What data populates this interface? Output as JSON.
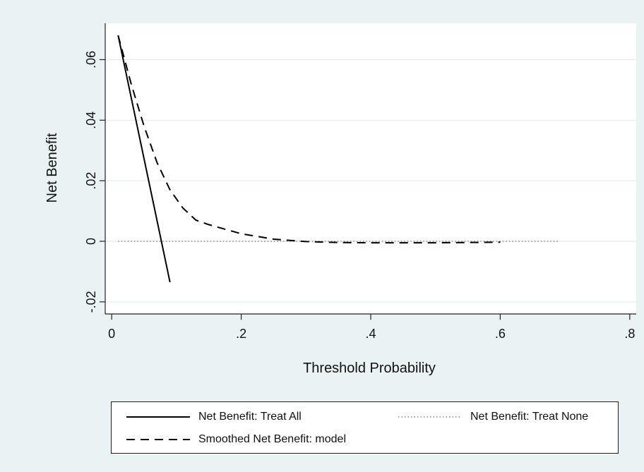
{
  "chart_data": {
    "type": "line",
    "title": "",
    "xlabel": "Threshold Probability",
    "ylabel": "Net Benefit",
    "xlim": [
      -0.01,
      0.81
    ],
    "ylim": [
      -0.024,
      0.072
    ],
    "xticks": [
      0,
      0.2,
      0.4,
      0.6,
      0.8
    ],
    "xtick_labels": [
      "0",
      ".2",
      ".4",
      ".6",
      ".8"
    ],
    "yticks": [
      -0.02,
      0,
      0.02,
      0.04,
      0.06
    ],
    "ytick_labels": [
      "-.02",
      "0",
      ".02",
      ".04",
      ".06"
    ],
    "grid": "horizontal",
    "legend_position": "bottom",
    "series": [
      {
        "name": "Net Benefit: Treat All",
        "style": "solid",
        "color": "#000000",
        "x": [
          0.01,
          0.09
        ],
        "y": [
          0.068,
          -0.0135
        ]
      },
      {
        "name": "Net Benefit: Treat None",
        "style": "dotted",
        "color": "#888888",
        "x": [
          0.01,
          0.69
        ],
        "y": [
          0,
          0
        ]
      },
      {
        "name": "Smoothed Net Benefit: model",
        "style": "dashed",
        "color": "#000000",
        "x": [
          0.01,
          0.03,
          0.05,
          0.07,
          0.09,
          0.11,
          0.13,
          0.15,
          0.2,
          0.25,
          0.3,
          0.35,
          0.4,
          0.45,
          0.5,
          0.55,
          0.6
        ],
        "y": [
          0.068,
          0.052,
          0.038,
          0.026,
          0.017,
          0.011,
          0.007,
          0.0055,
          0.0025,
          0.0007,
          -0.0001,
          -0.0004,
          -0.0005,
          -0.0005,
          -0.0005,
          -0.0004,
          -0.0003
        ]
      }
    ]
  }
}
